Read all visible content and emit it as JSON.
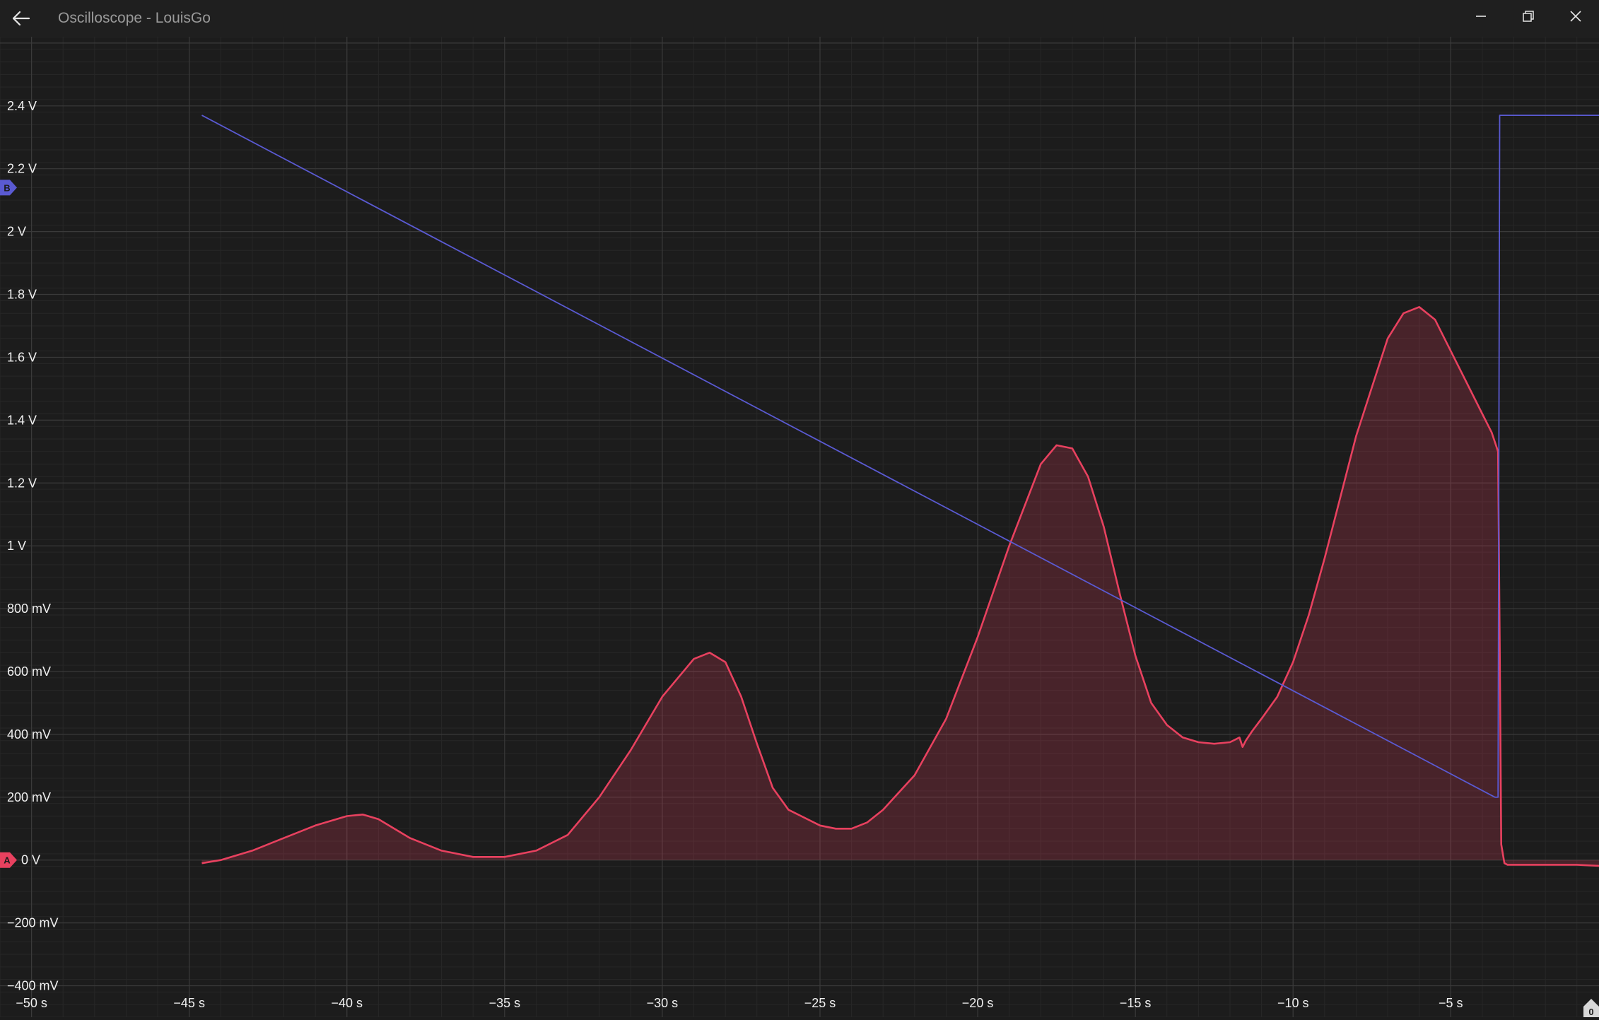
{
  "window": {
    "title": "Oscilloscope - LouisGo",
    "back_icon": "arrow-left-icon",
    "controls": [
      "minimize-icon",
      "restore-icon",
      "close-icon"
    ]
  },
  "channels": {
    "a": {
      "label": "A",
      "color": "#e8415f"
    },
    "b": {
      "label": "B",
      "color": "#5a5ad2"
    }
  },
  "corner_badge": "0",
  "chart_data": {
    "type": "line",
    "xlim": [
      -51,
      -0.3
    ],
    "ylim": [
      -0.5,
      2.62
    ],
    "x_ticks": [
      -50,
      -45,
      -40,
      -35,
      -30,
      -25,
      -20,
      -15,
      -10,
      -5
    ],
    "x_tick_labels": [
      "−50 s",
      "−45 s",
      "−40 s",
      "−35 s",
      "−30 s",
      "−25 s",
      "−20 s",
      "−15 s",
      "−10 s",
      "−5 s"
    ],
    "y_ticks": [
      -0.4,
      -0.2,
      0,
      0.2,
      0.4,
      0.6,
      0.8,
      1.0,
      1.2,
      1.4,
      1.6,
      1.8,
      2.0,
      2.2,
      2.4
    ],
    "y_tick_labels": [
      "−400 mV",
      "−200 mV",
      "0 V",
      "200 mV",
      "400 mV",
      "600 mV",
      "800 mV",
      "1 V",
      "1.2 V",
      "1.4 V",
      "1.6 V",
      "1.8 V",
      "2 V",
      "2.2 V",
      "2.4 V"
    ],
    "grid": true,
    "series": [
      {
        "channel": "A",
        "color": "#e8415f",
        "fill": true,
        "x": [
          -44.6,
          -44.0,
          -43.0,
          -42.0,
          -41.0,
          -40.0,
          -39.5,
          -39.0,
          -38.5,
          -38.0,
          -37.0,
          -36.0,
          -35.0,
          -34.0,
          -33.0,
          -32.0,
          -31.0,
          -30.0,
          -29.0,
          -28.5,
          -28.0,
          -27.5,
          -27.0,
          -26.5,
          -26.0,
          -25.0,
          -24.5,
          -24.0,
          -23.5,
          -23.0,
          -22.0,
          -21.0,
          -20.0,
          -19.0,
          -18.0,
          -17.5,
          -17.0,
          -16.5,
          -16.0,
          -15.5,
          -15.0,
          -14.5,
          -14.0,
          -13.5,
          -13.0,
          -12.5,
          -12.0,
          -11.7,
          -11.6,
          -11.5,
          -11.3,
          -11.0,
          -10.5,
          -10.0,
          -9.5,
          -9.0,
          -8.0,
          -7.0,
          -6.5,
          -6.0,
          -5.5,
          -5.0,
          -4.5,
          -4.0,
          -3.7,
          -3.5,
          -3.45,
          -3.4,
          -3.3,
          -3.2,
          -3.0,
          -2.0,
          -1.0,
          0.0
        ],
        "y": [
          -0.01,
          0.0,
          0.03,
          0.07,
          0.11,
          0.14,
          0.145,
          0.13,
          0.1,
          0.07,
          0.03,
          0.01,
          0.01,
          0.03,
          0.08,
          0.2,
          0.35,
          0.52,
          0.64,
          0.66,
          0.63,
          0.52,
          0.37,
          0.23,
          0.16,
          0.11,
          0.1,
          0.1,
          0.12,
          0.16,
          0.27,
          0.45,
          0.71,
          1.0,
          1.26,
          1.32,
          1.31,
          1.22,
          1.06,
          0.85,
          0.65,
          0.5,
          0.43,
          0.39,
          0.375,
          0.37,
          0.375,
          0.39,
          0.36,
          0.38,
          0.41,
          0.45,
          0.52,
          0.63,
          0.78,
          0.96,
          1.35,
          1.66,
          1.74,
          1.76,
          1.72,
          1.62,
          1.52,
          1.42,
          1.36,
          1.3,
          0.7,
          0.05,
          -0.01,
          -0.015,
          -0.015,
          -0.015,
          -0.015,
          -0.02
        ]
      },
      {
        "channel": "B",
        "color": "#5a5ad2",
        "fill": false,
        "x": [
          -44.6,
          -3.6,
          -3.5,
          -3.45,
          -3.3,
          -1.0,
          0.0
        ],
        "y": [
          2.37,
          0.2,
          0.2,
          2.37,
          2.37,
          2.37,
          2.37
        ]
      }
    ]
  }
}
